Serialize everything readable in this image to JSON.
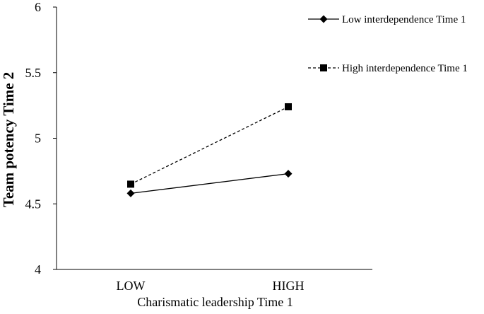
{
  "chart_data": {
    "type": "line",
    "title": "",
    "xlabel": "Charismatic leadership Time 1",
    "ylabel": "Team potency Time 2",
    "categories": [
      "LOW",
      "HIGH"
    ],
    "ylim": [
      4,
      6
    ],
    "yticks": [
      "4",
      "4.5",
      "5",
      "5.5",
      "6"
    ],
    "grid": false,
    "legend_position": "top-right",
    "series": [
      {
        "name": "Low interdependence Time 1",
        "values": [
          4.58,
          4.73
        ],
        "line_style": "solid",
        "marker": "diamond",
        "color": "#000000"
      },
      {
        "name": "High interdependence Time 1",
        "values": [
          4.65,
          5.24
        ],
        "line_style": "dashed",
        "marker": "square",
        "color": "#000000"
      }
    ]
  }
}
